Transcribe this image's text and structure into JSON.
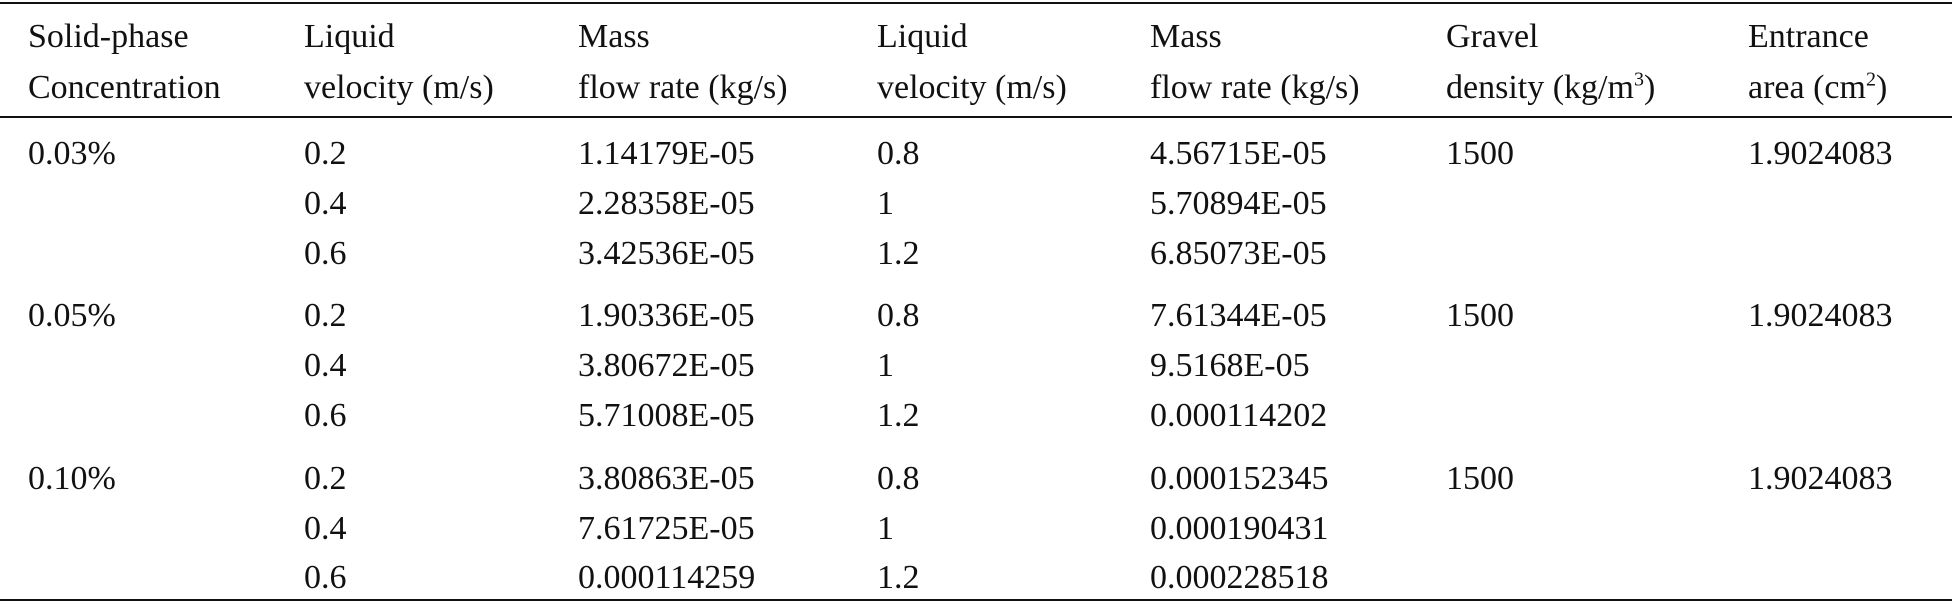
{
  "header": {
    "col1": [
      "Solid-phase",
      "Concentration"
    ],
    "col2": [
      "Liquid",
      "velocity (m/s)"
    ],
    "col3": [
      "Mass",
      "flow rate (kg/s)"
    ],
    "col4": [
      "Liquid",
      "velocity (m/s)"
    ],
    "col5": [
      "Mass",
      "flow rate (kg/s)"
    ],
    "col6": [
      "Gravel",
      "density (kg/m",
      "3",
      ")"
    ],
    "col7": [
      "Entrance",
      "area (cm",
      "2",
      ")"
    ]
  },
  "groups": [
    {
      "concentration": "0.03%",
      "rows": [
        {
          "v1": "0.2",
          "m1": "1.14179E-05",
          "v2": "0.8",
          "m2": "4.56715E-05"
        },
        {
          "v1": "0.4",
          "m1": "2.28358E-05",
          "v2": "1",
          "m2": "5.70894E-05"
        },
        {
          "v1": "0.6",
          "m1": "3.42536E-05",
          "v2": "1.2",
          "m2": "6.85073E-05"
        }
      ],
      "density": "1500",
      "area": "1.9024083"
    },
    {
      "concentration": "0.05%",
      "rows": [
        {
          "v1": "0.2",
          "m1": "1.90336E-05",
          "v2": "0.8",
          "m2": "7.61344E-05"
        },
        {
          "v1": "0.4",
          "m1": "3.80672E-05",
          "v2": "1",
          "m2": "9.5168E-05"
        },
        {
          "v1": "0.6",
          "m1": "5.71008E-05",
          "v2": "1.2",
          "m2": "0.000114202"
        }
      ],
      "density": "1500",
      "area": "1.9024083"
    },
    {
      "concentration": "0.10%",
      "rows": [
        {
          "v1": "0.2",
          "m1": "3.80863E-05",
          "v2": "0.8",
          "m2": "0.000152345"
        },
        {
          "v1": "0.4",
          "m1": "7.61725E-05",
          "v2": "1",
          "m2": "0.000190431"
        },
        {
          "v1": "0.6",
          "m1": "0.000114259",
          "v2": "1.2",
          "m2": "0.000228518"
        }
      ],
      "density": "1500",
      "area": "1.9024083"
    }
  ]
}
